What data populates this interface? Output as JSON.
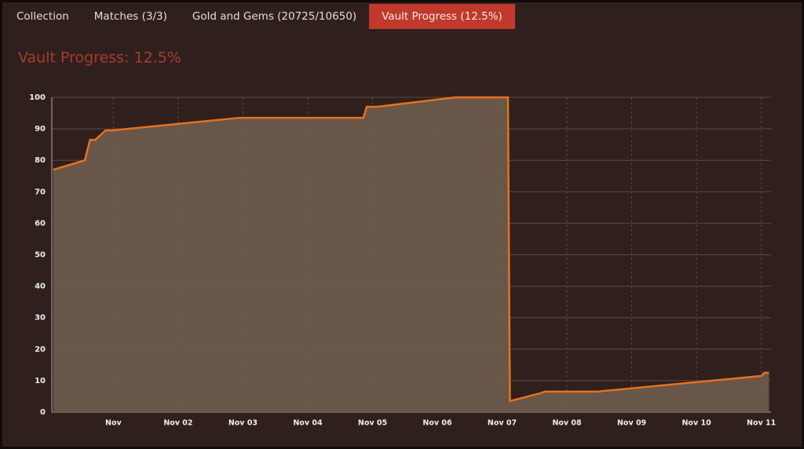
{
  "tabs": [
    "Collection",
    "Matches (3/3)",
    "Gold and Gems (20725/10650)",
    "Vault Progress (12.5%)"
  ],
  "active_tab": 3,
  "chart_data": {
    "type": "area",
    "title": "Vault Progress: 12.5%",
    "x": [
      0.07,
      0.56,
      0.64,
      0.72,
      0.88,
      0.98,
      2.95,
      4.86,
      4.91,
      5.07,
      6.28,
      7.09,
      7.12,
      7.59,
      7.66,
      8.46,
      11.0,
      11.05,
      11.12
    ],
    "series": [
      {
        "color": "#e8711c",
        "fill": "#6b5a4c",
        "values": [
          77,
          80,
          86.5,
          86.5,
          89.5,
          89.5,
          93.5,
          93.5,
          97,
          97,
          100,
          100,
          3.5,
          6,
          6.5,
          6.5,
          11.5,
          12.5,
          12.5
        ]
      }
    ],
    "xlim": [
      0.05,
      11.15
    ],
    "xticks": [
      {
        "value": 1,
        "label": "Nov"
      },
      {
        "value": 2,
        "label": "Nov 02"
      },
      {
        "value": 3,
        "label": "Nov 03"
      },
      {
        "value": 4,
        "label": "Nov 04"
      },
      {
        "value": 5,
        "label": "Nov 05"
      },
      {
        "value": 6,
        "label": "Nov 06"
      },
      {
        "value": 7,
        "label": "Nov 07"
      },
      {
        "value": 8,
        "label": "Nov 08"
      },
      {
        "value": 9,
        "label": "Nov 09"
      },
      {
        "value": 10,
        "label": "Nov 10"
      },
      {
        "value": 11,
        "label": "Nov 11"
      }
    ],
    "ylim": [
      0,
      100
    ],
    "yticks": [
      0,
      10,
      20,
      30,
      40,
      50,
      60,
      70,
      80,
      90,
      100
    ],
    "grid": true
  }
}
